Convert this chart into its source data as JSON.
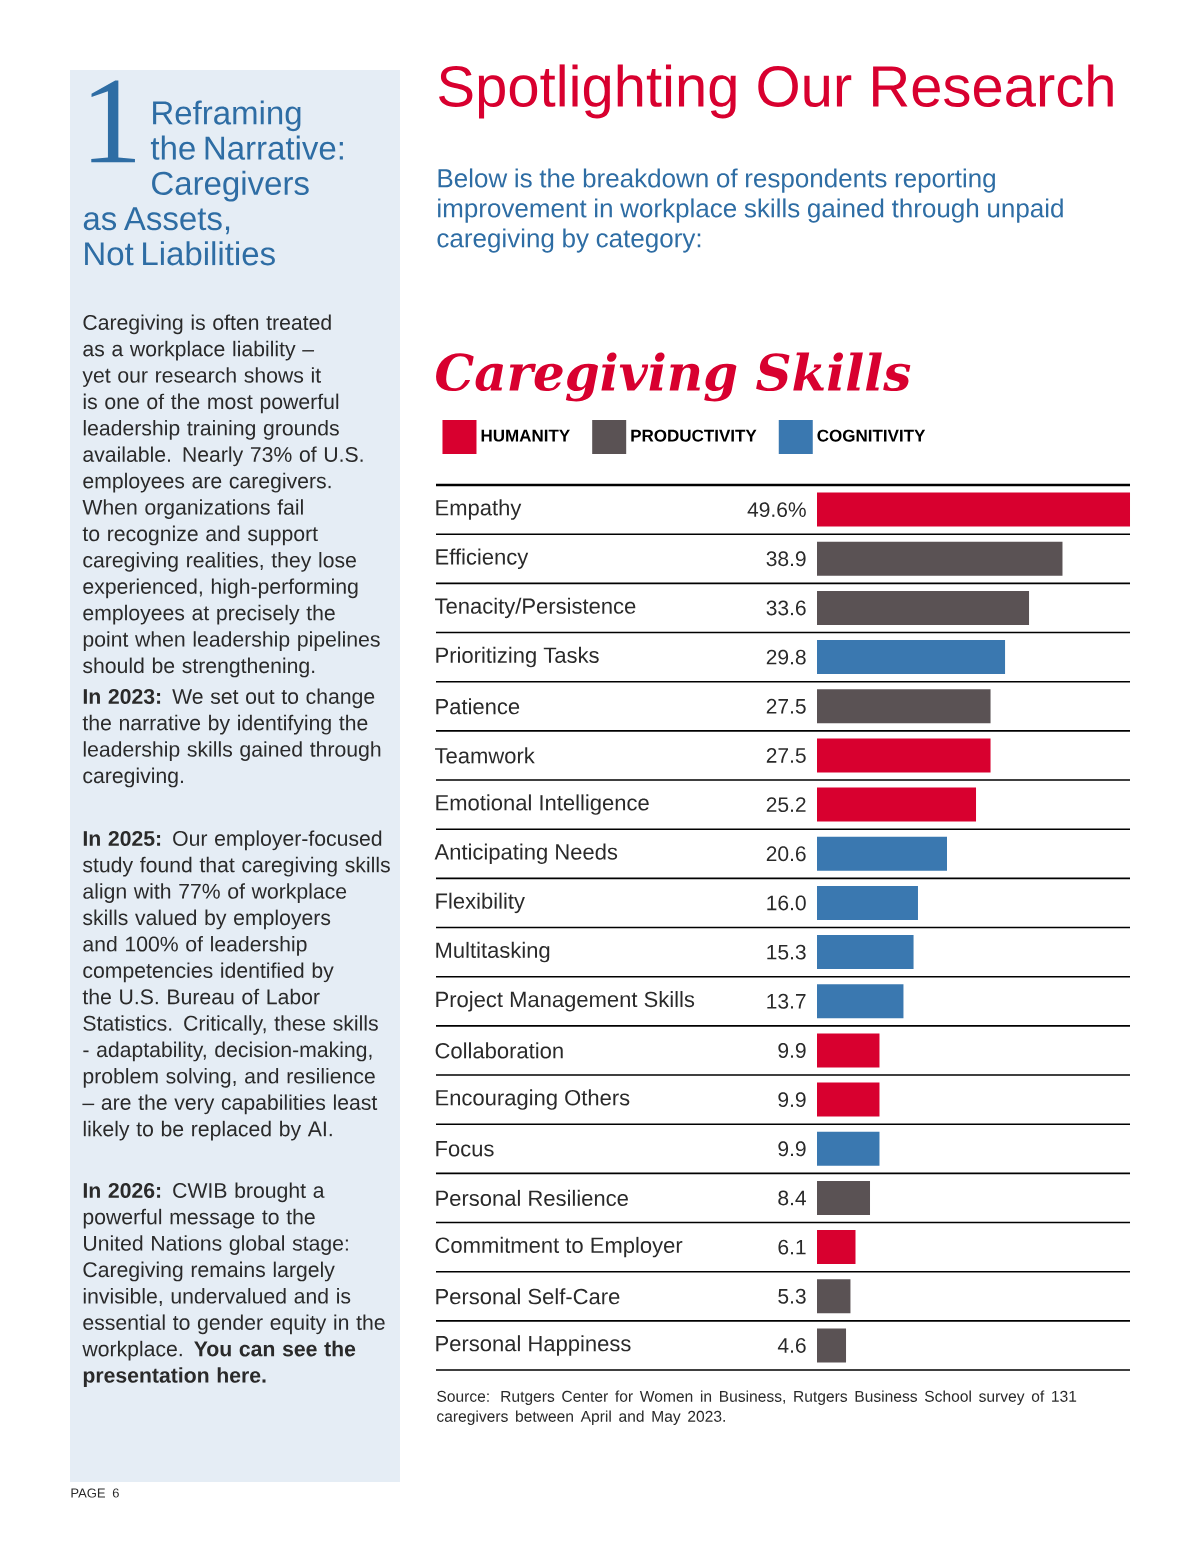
{
  "chart_data": {
    "type": "bar",
    "orientation": "horizontal",
    "title": "Caregiving Skills",
    "categories": [
      "Empathy",
      "Efficiency",
      "Tenacity/Persistence",
      "Prioritizing Tasks",
      "Patience",
      "Teamwork",
      "Emotional Intelligence",
      "Anticipating Needs",
      "Flexibility",
      "Multitasking",
      "Project Management Skills",
      "Collaboration",
      "Encouraging Others",
      "Focus",
      "Personal Resilience",
      "Commitment to Employer",
      "Personal Self-Care",
      "Personal Happiness"
    ],
    "series": [
      {
        "name": "HUMANITY",
        "color": "#d8002f",
        "values": [
          49.6,
          null,
          null,
          null,
          null,
          27.5,
          25.2,
          null,
          null,
          null,
          null,
          9.9,
          9.9,
          null,
          null,
          6.1,
          null,
          null
        ],
        "value_labels": [
          "49.6%",
          null,
          null,
          null,
          null,
          "27.5",
          "25.2",
          null,
          null,
          null,
          null,
          "9.9",
          "9.9",
          null,
          null,
          "6.1",
          null,
          null
        ]
      },
      {
        "name": "PRODUCTIVITY",
        "color": "#5a5254",
        "values": [
          null,
          38.9,
          33.6,
          null,
          27.5,
          null,
          null,
          null,
          null,
          null,
          null,
          null,
          null,
          null,
          8.4,
          null,
          5.3,
          4.6
        ],
        "value_labels": [
          null,
          "38.9",
          "33.6",
          null,
          "27.5",
          null,
          null,
          null,
          null,
          null,
          null,
          null,
          null,
          null,
          "8.4",
          null,
          "5.3",
          "4.6"
        ]
      },
      {
        "name": "COGNITIVITY",
        "color": "#3a78b0",
        "values": [
          null,
          null,
          null,
          29.8,
          null,
          null,
          null,
          20.6,
          16.0,
          15.3,
          13.7,
          null,
          null,
          9.9,
          null,
          null,
          null,
          null
        ],
        "value_labels": [
          null,
          null,
          null,
          "29.8",
          null,
          null,
          null,
          "20.6",
          "16.0",
          "15.3",
          "13.7",
          null,
          null,
          "9.9",
          null,
          null,
          null,
          null
        ]
      }
    ],
    "legend": "top left",
    "grid": "y",
    "tick_labels": "y",
    "annotations": [
      "Spotlighting Our Research",
      "Below is the breakdown of respondents reporting improvement in workplace skills gained through unpaid caregiving by category:",
      "1",
      "Reframing the Narrative: Caregivers as Assets, Not Liabilities",
      "Caregiving is often treated as a workplace liability – yet our research shows it is one of the most powerful leadership training grounds available. Nearly 73% of U.S. employees are caregivers. When organizations fail to recognize and support caregiving realities, they lose experienced, high-performing employees at precisely the point when leadership pipelines should be strengthening.",
      "**In 2023:** We set out to change the narrative by identifying the leadership skills gained through caregiving.",
      "**In 2025:** Our employer-focused study found that caregiving skills align with 77% of workplace skills valued by employers and 100% of leadership competencies identified by the U.S. Bureau of Labor Statistics. Critically, these skills - adaptability, decision-making, problem solving, and resilience – are the very capabilities least likely to be replaced by AI.",
      "**In 2026:** CWIB brought a powerful message to the United Nations global stage: Caregiving remains largely invisible, undervalued and is essential to gender equity in the workplace. **You can see the presentation here.**",
      "Source: Rutgers Center for Women in Business, Rutgers Business School survey of 131 caregivers between April and May 2023.",
      "PAGE 6"
    ]
  }
}
